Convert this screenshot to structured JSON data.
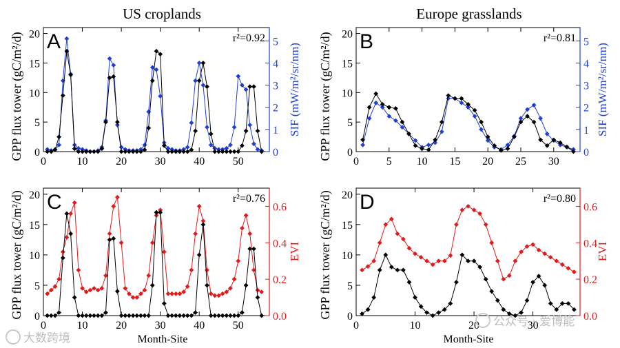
{
  "figure": {
    "column_titles": [
      "US croplands",
      "Europe grasslands"
    ],
    "left_ylabel": "GPP flux tower (gC/m²/d)",
    "xlabel": "Month-Site",
    "top_right_ylabel": "SIF (mW/m²/sr/nm)",
    "bottom_right_ylabel": "EVI",
    "colors": {
      "gpp": "#000000",
      "sif": "#1f3fd6",
      "evi": "#e11b1b"
    }
  },
  "watermarks": {
    "left": "大数跨境",
    "right": "公众号 · 爱博能"
  },
  "chart_data": [
    {
      "panel": "A",
      "type": "line",
      "r2_label": "r²=0.92",
      "xlim": [
        0,
        58
      ],
      "xticks": [
        0,
        10,
        20,
        30,
        40,
        50
      ],
      "ylim": [
        0,
        21
      ],
      "yticks": [
        0,
        5,
        10,
        15,
        20
      ],
      "y2lim": [
        0,
        5.6
      ],
      "y2ticks": [
        0,
        1,
        2,
        3,
        4,
        5
      ],
      "y2color": "#1f3fd6",
      "series": [
        {
          "name": "GPP flux tower",
          "axis": "left",
          "color": "#000000",
          "x": [
            1,
            2,
            3,
            4,
            5,
            6,
            7,
            8,
            9,
            10,
            11,
            12,
            13,
            14,
            15,
            16,
            17,
            18,
            19,
            20,
            21,
            22,
            23,
            24,
            25,
            26,
            27,
            28,
            29,
            30,
            31,
            32,
            33,
            34,
            35,
            36,
            37,
            38,
            39,
            40,
            41,
            42,
            43,
            44,
            45,
            46,
            47,
            48,
            49,
            50,
            51,
            52,
            53,
            54,
            55,
            56
          ],
          "values": [
            0,
            0,
            0.3,
            2.5,
            9.5,
            17,
            13,
            0.5,
            0,
            0,
            0,
            0,
            0,
            0,
            0.5,
            5,
            12.5,
            12.7,
            5,
            0,
            0,
            0,
            0,
            0,
            0,
            0.3,
            4,
            12,
            17,
            16.5,
            1,
            0,
            0,
            0,
            0,
            0,
            0,
            0.3,
            3.5,
            12,
            15,
            11,
            3,
            0,
            0,
            0,
            0,
            0,
            0,
            0,
            1,
            3.5,
            11,
            11,
            3.5,
            0
          ]
        },
        {
          "name": "SIF",
          "axis": "right",
          "color": "#1f3fd6",
          "x": [
            1,
            2,
            3,
            4,
            5,
            6,
            7,
            8,
            9,
            10,
            11,
            12,
            13,
            14,
            15,
            16,
            17,
            18,
            19,
            20,
            21,
            22,
            23,
            24,
            25,
            26,
            27,
            28,
            29,
            30,
            31,
            32,
            33,
            34,
            35,
            36,
            37,
            38,
            39,
            40,
            41,
            42,
            43,
            44,
            45,
            46,
            47,
            48,
            49,
            50,
            51,
            52,
            53,
            54,
            55,
            56
          ],
          "values": [
            0.1,
            0.05,
            0.1,
            0.3,
            3.2,
            5.1,
            3.5,
            0.3,
            0.15,
            0.1,
            0.05,
            0,
            0,
            0.05,
            0.2,
            1.4,
            4.2,
            3.9,
            1.2,
            0.2,
            0.1,
            0.05,
            0.05,
            0.05,
            0.1,
            0.3,
            1.8,
            3.8,
            3.7,
            2.5,
            0.4,
            0.15,
            0.1,
            0.05,
            0.05,
            0.1,
            0.2,
            1.3,
            3.2,
            4,
            3,
            1.1,
            0.3,
            0.15,
            0.1,
            0.1,
            0.15,
            0.3,
            1.1,
            3.4,
            3,
            2.8,
            1.2,
            0.35,
            0.1,
            0.05
          ]
        }
      ]
    },
    {
      "panel": "B",
      "type": "line",
      "r2_label": "r²=0.81",
      "xlim": [
        0,
        34
      ],
      "xticks": [
        0,
        5,
        10,
        15,
        20,
        25,
        30
      ],
      "ylim": [
        0,
        21
      ],
      "yticks": [
        0,
        5,
        10,
        15,
        20
      ],
      "y2lim": [
        0,
        5.6
      ],
      "y2ticks": [
        0,
        1,
        2,
        3,
        4,
        5
      ],
      "y2color": "#1f3fd6",
      "series": [
        {
          "name": "GPP flux tower",
          "axis": "left",
          "color": "#000000",
          "x": [
            1,
            2,
            3,
            4,
            5,
            6,
            7,
            8,
            9,
            10,
            11,
            12,
            13,
            14,
            15,
            16,
            17,
            18,
            19,
            20,
            21,
            22,
            23,
            24,
            25,
            26,
            27,
            28,
            29,
            30,
            31,
            32,
            33
          ],
          "values": [
            2,
            7.5,
            9.8,
            8,
            7.5,
            7.3,
            5,
            3,
            1,
            0.5,
            0.3,
            2,
            5,
            9.5,
            9,
            9,
            8,
            7,
            5,
            2.5,
            1,
            0.2,
            0.5,
            2.5,
            5,
            6,
            5,
            2,
            1,
            2,
            1.5,
            0.8,
            0
          ]
        },
        {
          "name": "SIF",
          "axis": "right",
          "color": "#1f3fd6",
          "x": [
            1,
            2,
            3,
            4,
            5,
            6,
            7,
            8,
            9,
            10,
            11,
            12,
            13,
            14,
            15,
            16,
            17,
            18,
            19,
            20,
            21,
            22,
            23,
            24,
            25,
            26,
            27,
            28,
            29,
            30,
            31,
            32,
            33
          ],
          "values": [
            0.3,
            1.5,
            2.2,
            2,
            1.6,
            1.4,
            1.1,
            0.8,
            0.5,
            0.2,
            0.3,
            0.4,
            0.9,
            2.4,
            2.4,
            2.2,
            2,
            1.6,
            1,
            0.5,
            0.2,
            0.1,
            0.3,
            0.7,
            1.5,
            1.9,
            2.1,
            1.5,
            0.8,
            0.5,
            0.3,
            0.2,
            0.1
          ]
        }
      ]
    },
    {
      "panel": "C",
      "type": "line",
      "r2_label": "r²=0.76",
      "xlim": [
        0,
        58
      ],
      "xticks": [
        0,
        10,
        20,
        30,
        40,
        50
      ],
      "ylim": [
        0,
        21
      ],
      "yticks": [
        0,
        5,
        10,
        15,
        20
      ],
      "y2lim": [
        0,
        0.7
      ],
      "y2ticks": [
        0.0,
        0.2,
        0.4,
        0.6
      ],
      "y2color": "#e11b1b",
      "series": [
        {
          "name": "GPP flux tower",
          "axis": "left",
          "color": "#000000",
          "x": [
            1,
            2,
            3,
            4,
            5,
            6,
            7,
            8,
            9,
            10,
            11,
            12,
            13,
            14,
            15,
            16,
            17,
            18,
            19,
            20,
            21,
            22,
            23,
            24,
            25,
            26,
            27,
            28,
            29,
            30,
            31,
            32,
            33,
            34,
            35,
            36,
            37,
            38,
            39,
            40,
            41,
            42,
            43,
            44,
            45,
            46,
            47,
            48,
            49,
            50,
            51,
            52,
            53,
            54,
            55,
            56
          ],
          "values": [
            0,
            0,
            0,
            0.5,
            9.5,
            16.8,
            13.5,
            3,
            0,
            0,
            0,
            0,
            0,
            0,
            0,
            0.5,
            12.5,
            12.7,
            4,
            0,
            0,
            0,
            0,
            0,
            0,
            0,
            0,
            5,
            17,
            17,
            2,
            0,
            0,
            0,
            0,
            0,
            0,
            0,
            0.5,
            10,
            15,
            5,
            0,
            0,
            0,
            0,
            0,
            0,
            0,
            0,
            0.5,
            5,
            11,
            11,
            3,
            0
          ]
        },
        {
          "name": "EVI",
          "axis": "right",
          "color": "#e11b1b",
          "x": [
            1,
            2,
            3,
            4,
            5,
            6,
            7,
            8,
            9,
            10,
            11,
            12,
            13,
            14,
            15,
            16,
            17,
            18,
            19,
            20,
            21,
            22,
            23,
            24,
            25,
            26,
            27,
            28,
            29,
            30,
            31,
            32,
            33,
            34,
            35,
            36,
            37,
            38,
            39,
            40,
            41,
            42,
            43,
            44,
            45,
            46,
            47,
            48,
            49,
            50,
            51,
            52,
            53,
            54,
            55,
            56
          ],
          "values": [
            0.12,
            0.14,
            0.16,
            0.2,
            0.35,
            0.43,
            0.56,
            0.62,
            0.25,
            0.15,
            0.13,
            0.14,
            0.15,
            0.14,
            0.15,
            0.22,
            0.45,
            0.6,
            0.65,
            0.4,
            0.15,
            0.12,
            0.1,
            0.1,
            0.12,
            0.14,
            0.22,
            0.4,
            0.55,
            0.58,
            0.35,
            0.12,
            0.12,
            0.12,
            0.12,
            0.13,
            0.16,
            0.25,
            0.45,
            0.6,
            0.52,
            0.25,
            0.12,
            0.11,
            0.11,
            0.12,
            0.13,
            0.15,
            0.2,
            0.3,
            0.48,
            0.55,
            0.45,
            0.25,
            0.14,
            0.13
          ]
        }
      ]
    },
    {
      "panel": "D",
      "type": "line",
      "r2_label": "r²=0.80",
      "xlim": [
        0,
        38
      ],
      "xticks": [
        0,
        10,
        20,
        30
      ],
      "ylim": [
        0,
        21
      ],
      "yticks": [
        0,
        5,
        10,
        15,
        20
      ],
      "y2lim": [
        0,
        0.7
      ],
      "y2ticks": [
        0.0,
        0.2,
        0.4,
        0.6
      ],
      "y2color": "#e11b1b",
      "series": [
        {
          "name": "GPP flux tower",
          "axis": "left",
          "color": "#000000",
          "x": [
            1,
            2,
            3,
            4,
            5,
            6,
            7,
            8,
            9,
            10,
            11,
            12,
            13,
            14,
            15,
            16,
            17,
            18,
            19,
            20,
            21,
            22,
            23,
            24,
            25,
            26,
            27,
            28,
            29,
            30,
            31,
            32,
            33,
            34,
            35,
            36,
            37
          ],
          "values": [
            0.3,
            1,
            3,
            7.5,
            10,
            8,
            7.5,
            7.5,
            5.5,
            3,
            1.5,
            0.5,
            0,
            0.5,
            1,
            2,
            5.5,
            10,
            9,
            9,
            8,
            6,
            4,
            2.5,
            1,
            0.3,
            0,
            0.5,
            2.5,
            5.5,
            6.5,
            5,
            2,
            1,
            2,
            2,
            1
          ]
        },
        {
          "name": "EVI",
          "axis": "right",
          "color": "#e11b1b",
          "x": [
            1,
            2,
            3,
            4,
            5,
            6,
            7,
            8,
            9,
            10,
            11,
            12,
            13,
            14,
            15,
            16,
            17,
            18,
            19,
            20,
            21,
            22,
            23,
            24,
            25,
            26,
            27,
            28,
            29,
            30,
            31,
            32,
            33,
            34,
            35,
            36,
            37
          ],
          "values": [
            0.25,
            0.27,
            0.3,
            0.4,
            0.5,
            0.53,
            0.45,
            0.42,
            0.37,
            0.34,
            0.32,
            0.3,
            0.28,
            0.3,
            0.3,
            0.33,
            0.5,
            0.58,
            0.6,
            0.58,
            0.56,
            0.5,
            0.4,
            0.3,
            0.2,
            0.22,
            0.3,
            0.35,
            0.38,
            0.39,
            0.36,
            0.34,
            0.32,
            0.3,
            0.28,
            0.26,
            0.24
          ]
        }
      ]
    }
  ]
}
